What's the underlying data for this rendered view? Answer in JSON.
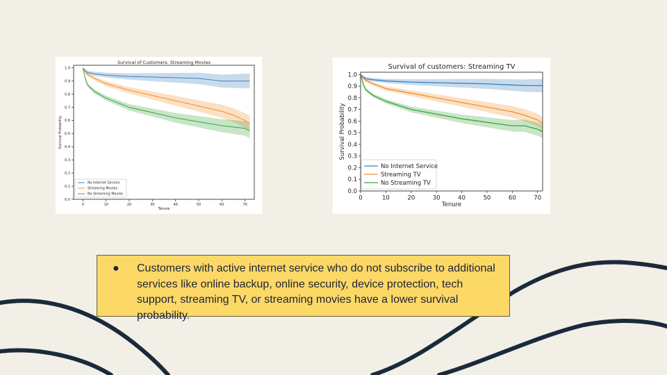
{
  "colors": {
    "background": "#f2f0e6",
    "callout": "#fcd867",
    "wave": "#1b2a3a",
    "no_internet": "#3a7ebf",
    "streaming": "#f28e2b",
    "no_streaming": "#3aa23a"
  },
  "callout": {
    "bullet": "●",
    "text": "Customers with active internet service who do not subscribe to additional services like online backup, online security, device protection, tech support, streaming TV, or streaming movies have a lower survival probability."
  },
  "chart_data": [
    {
      "type": "line",
      "title": "Survival of Customers: Streaming Movies",
      "xlabel": "Tenure",
      "ylabel": "Survival Probability",
      "xlim": [
        -4,
        74
      ],
      "ylim": [
        0,
        1.02
      ],
      "xticks": [
        0,
        10,
        20,
        30,
        40,
        50,
        60,
        70
      ],
      "yticks": [
        "0.0",
        "0.1",
        "0.2",
        "0.3",
        "0.4",
        "0.5",
        "0.6",
        "0.7",
        "0.8",
        "0.9",
        "1.0"
      ],
      "legend_position": "lower-left",
      "series": [
        {
          "name": "No Internet Service",
          "x": [
            0,
            1,
            2,
            5,
            10,
            20,
            30,
            40,
            50,
            55,
            60,
            65,
            72
          ],
          "y": [
            1.0,
            0.98,
            0.965,
            0.955,
            0.945,
            0.935,
            0.93,
            0.925,
            0.92,
            0.91,
            0.9,
            0.9,
            0.9
          ]
        },
        {
          "name": "Streaming Movies",
          "x": [
            0,
            1,
            2,
            5,
            10,
            20,
            30,
            40,
            50,
            60,
            65,
            70,
            72
          ],
          "y": [
            1.0,
            0.97,
            0.95,
            0.92,
            0.88,
            0.83,
            0.79,
            0.75,
            0.71,
            0.67,
            0.64,
            0.6,
            0.58
          ]
        },
        {
          "name": "No Streaming Movies",
          "x": [
            0,
            1,
            2,
            5,
            10,
            20,
            30,
            40,
            50,
            60,
            65,
            70,
            72
          ],
          "y": [
            1.0,
            0.92,
            0.87,
            0.82,
            0.77,
            0.7,
            0.66,
            0.62,
            0.59,
            0.56,
            0.55,
            0.54,
            0.52
          ]
        }
      ]
    },
    {
      "type": "line",
      "title": "Survival of customers: Streaming TV",
      "xlabel": "Tenure",
      "ylabel": "Survival Probability",
      "xlim": [
        0,
        72
      ],
      "ylim": [
        0,
        1.02
      ],
      "xticks": [
        0,
        10,
        20,
        30,
        40,
        50,
        60,
        70
      ],
      "yticks": [
        "0.0",
        "0.1",
        "0.2",
        "0.3",
        "0.4",
        "0.5",
        "0.6",
        "0.7",
        "0.8",
        "0.9",
        "1.0"
      ],
      "legend_position": "lower-left",
      "series": [
        {
          "name": "No Internet Service",
          "x": [
            0,
            1,
            2,
            5,
            10,
            20,
            30,
            40,
            50,
            55,
            60,
            65,
            72
          ],
          "y": [
            1.0,
            0.98,
            0.965,
            0.955,
            0.945,
            0.935,
            0.93,
            0.925,
            0.92,
            0.915,
            0.91,
            0.905,
            0.905
          ]
        },
        {
          "name": "Streaming TV",
          "x": [
            0,
            1,
            2,
            5,
            10,
            20,
            30,
            40,
            50,
            60,
            65,
            70,
            72
          ],
          "y": [
            1.0,
            0.97,
            0.95,
            0.92,
            0.88,
            0.84,
            0.8,
            0.76,
            0.72,
            0.68,
            0.65,
            0.61,
            0.58
          ]
        },
        {
          "name": "No Streaming TV",
          "x": [
            0,
            1,
            2,
            5,
            10,
            20,
            30,
            40,
            50,
            60,
            65,
            70,
            72
          ],
          "y": [
            1.0,
            0.92,
            0.87,
            0.82,
            0.77,
            0.7,
            0.66,
            0.62,
            0.59,
            0.56,
            0.56,
            0.53,
            0.51
          ]
        }
      ]
    }
  ]
}
